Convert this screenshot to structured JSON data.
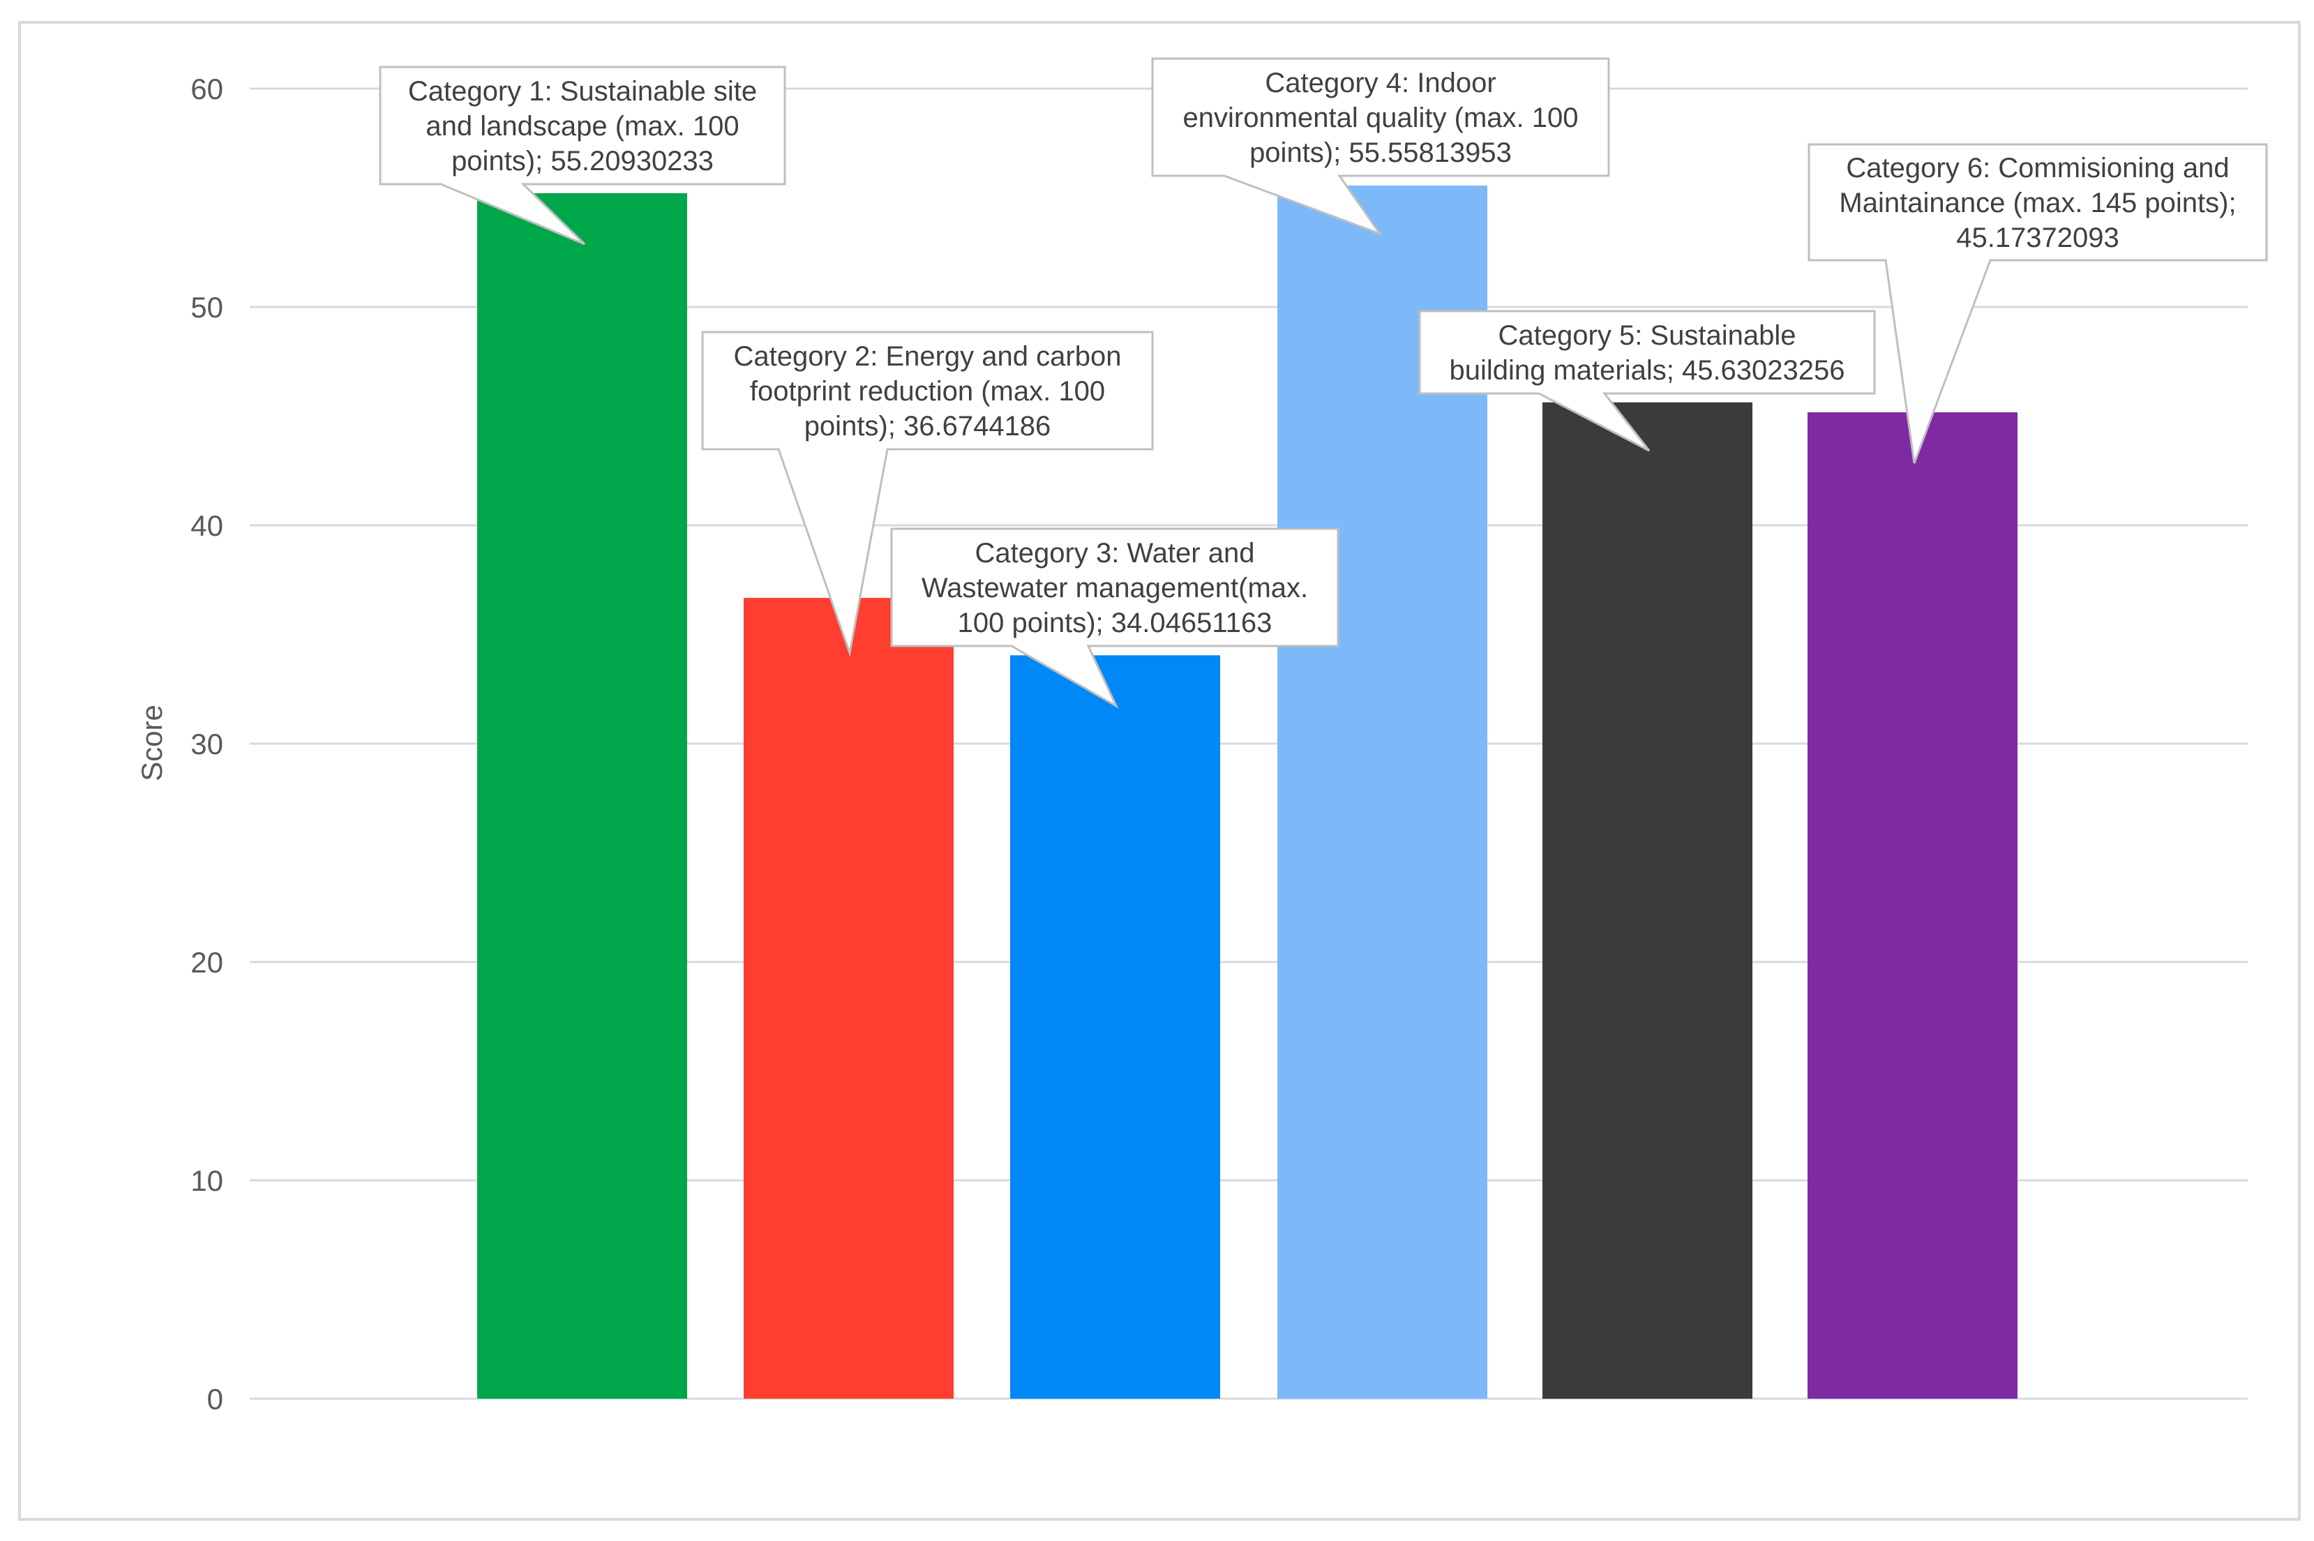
{
  "chart_data": {
    "type": "bar",
    "title": "",
    "xlabel": "",
    "ylabel": "Score",
    "ylim": [
      0,
      60
    ],
    "yticks": [
      0,
      10,
      20,
      30,
      40,
      50,
      60
    ],
    "grid": true,
    "legend": "none",
    "categories": [
      "Category 1: Sustainable site and landscape (max. 100 points)",
      "Category 2: Energy and carbon footprint reduction (max. 100 points)",
      "Category 3: Water and Wastewater management(max. 100 points)",
      "Category 4: Indoor environmental quality (max. 100 points)",
      "Category 5: Sustainable building materials",
      "Category 6: Commisioning and Maintainance  (max. 145 points)"
    ],
    "values": [
      55.20930233,
      36.6744186,
      34.04651163,
      55.55813953,
      45.63023256,
      45.17372093
    ],
    "colors": [
      "#00A74A",
      "#FF3E30",
      "#0088F7",
      "#7DB8F9",
      "#3B3B3B",
      "#7E2AA3"
    ],
    "annotations": [
      [
        "Category 1: Sustainable site",
        "and landscape (max. 100",
        "points); 55.20930233"
      ],
      [
        "Category 2: Energy and carbon",
        "footprint reduction (max. 100",
        "points); 36.6744186"
      ],
      [
        "Category 3: Water and",
        "Wastewater management(max.",
        "100 points); 34.04651163"
      ],
      [
        "Category 4: Indoor",
        "environmental quality (max. 100",
        "points); 55.55813953"
      ],
      [
        "Category 5: Sustainable",
        "building materials; 45.63023256"
      ],
      [
        "Category 6: Commisioning and",
        "Maintainance  (max. 145 points);",
        "45.17372093"
      ]
    ]
  }
}
